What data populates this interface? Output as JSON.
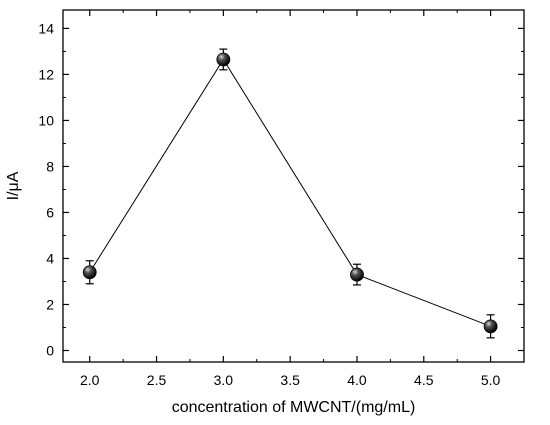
{
  "chart_data": {
    "type": "scatter",
    "title": "",
    "xlabel": "concentration of MWCNT/(mg/mL)",
    "ylabel": "I/μA",
    "xlim": [
      1.8,
      5.25
    ],
    "ylim": [
      -0.5,
      14.8
    ],
    "xticks": [
      "2.0",
      "2.5",
      "3.0",
      "3.5",
      "4.0",
      "4.5",
      "5.0"
    ],
    "yticks": [
      "0",
      "2",
      "4",
      "6",
      "8",
      "10",
      "12",
      "14"
    ],
    "connected_line": true,
    "marker": "sphere",
    "grid": false,
    "legend": "none",
    "series": [
      {
        "x": [
          2.0,
          3.0,
          4.0,
          5.0
        ],
        "values": [
          3.4,
          12.65,
          3.3,
          1.05
        ],
        "error": [
          0.5,
          0.45,
          0.45,
          0.5
        ]
      }
    ],
    "colors": {
      "line": "#000000",
      "marker": "#111111",
      "axis": "#000000"
    }
  }
}
